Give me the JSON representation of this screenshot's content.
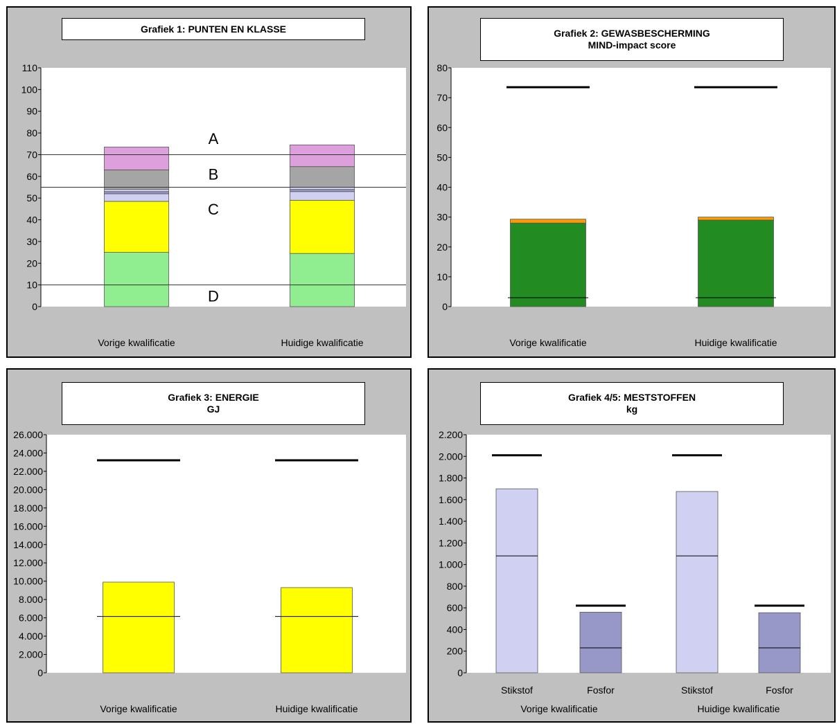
{
  "chart_data": [
    {
      "type": "bar",
      "stacked": true,
      "title": "Grafiek 1: PUNTEN EN KLASSE",
      "subtitle": "",
      "categories": [
        "Vorige kwalificatie",
        "Huidige kwalificatie"
      ],
      "ylim": [
        0,
        110
      ],
      "yticks": [
        0,
        10,
        20,
        30,
        40,
        50,
        60,
        70,
        80,
        90,
        100,
        110
      ],
      "tick_format": "plain",
      "series": [
        {
          "values": [
            25,
            24.5
          ],
          "color": "#90ee90"
        },
        {
          "values": [
            23.5,
            24.5
          ],
          "color": "#ffff00"
        },
        {
          "values": [
            3.5,
            4
          ],
          "color": "#d0d0f2"
        },
        {
          "values": [
            1,
            1
          ],
          "color": "#9898c8"
        },
        {
          "values": [
            1,
            1
          ],
          "color": "#d0d0f2"
        },
        {
          "values": [
            9,
            9.5
          ],
          "color": "#a5a5a5"
        },
        {
          "values": [
            10.5,
            10
          ],
          "color": "#dda0dd"
        }
      ],
      "reference_lines": [
        {
          "y": 70,
          "label": "A",
          "label_y": 77.5
        },
        {
          "y": 55,
          "label": "B",
          "label_y": 61
        },
        {
          "y": 10,
          "label": "D",
          "label_y": 5
        }
      ],
      "region_labels": [
        {
          "label": "C",
          "y": 45
        }
      ],
      "grid": false,
      "legend": "none"
    },
    {
      "type": "bar",
      "stacked": true,
      "title": "Grafiek 2: GEWASBESCHERMING",
      "subtitle": "MIND-impact score",
      "categories": [
        "Vorige kwalificatie",
        "Huidige kwalificatie"
      ],
      "ylim": [
        0,
        80
      ],
      "yticks": [
        0,
        10,
        20,
        30,
        40,
        50,
        60,
        70,
        80
      ],
      "tick_format": "plain",
      "series": [
        {
          "values": [
            28,
            29
          ],
          "color": "#228b22"
        },
        {
          "values": [
            1.3,
            1
          ],
          "color": "#ff9900"
        }
      ],
      "markers": [
        {
          "values": [
            73.5,
            73.5
          ],
          "style": "thick"
        },
        {
          "values": [
            3,
            3
          ],
          "style": "thin"
        }
      ],
      "grid": false,
      "legend": "none"
    },
    {
      "type": "bar",
      "stacked": false,
      "title": "Grafiek 3: ENERGIE",
      "subtitle": "GJ",
      "categories": [
        "Vorige kwalificatie",
        "Huidige kwalificatie"
      ],
      "ylim": [
        0,
        26000
      ],
      "yticks": [
        0,
        2000,
        4000,
        6000,
        8000,
        10000,
        12000,
        14000,
        16000,
        18000,
        20000,
        22000,
        24000,
        26000
      ],
      "tick_format": "nl",
      "series": [
        {
          "values": [
            9900,
            9300
          ],
          "color": "#ffff00"
        }
      ],
      "markers": [
        {
          "values": [
            23200,
            23200
          ],
          "style": "thick"
        },
        {
          "values": [
            6150,
            6150
          ],
          "style": "thin"
        }
      ],
      "grid": false,
      "legend": "none"
    },
    {
      "type": "bar",
      "stacked": false,
      "grouped": true,
      "title": "Grafiek 4/5: MESTSTOFFEN",
      "subtitle": "kg",
      "categories": [
        "Vorige kwalificatie",
        "Huidige kwalificatie"
      ],
      "subcategories": [
        "Stikstof",
        "Fosfor"
      ],
      "ylim": [
        0,
        2200
      ],
      "yticks": [
        0,
        200,
        400,
        600,
        800,
        1000,
        1200,
        1400,
        1600,
        1800,
        2000,
        2200
      ],
      "tick_format": "nl",
      "bars": [
        {
          "category": "Vorige kwalificatie",
          "sub": "Stikstof",
          "value": 1700,
          "color": "#d0d0f2",
          "max": 2010,
          "ref": 1080
        },
        {
          "category": "Vorige kwalificatie",
          "sub": "Fosfor",
          "value": 560,
          "color": "#9898c8",
          "max": 620,
          "ref": 230
        },
        {
          "category": "Huidige kwalificatie",
          "sub": "Stikstof",
          "value": 1675,
          "color": "#d0d0f2",
          "max": 2010,
          "ref": 1080
        },
        {
          "category": "Huidige kwalificatie",
          "sub": "Fosfor",
          "value": 555,
          "color": "#9898c8",
          "max": 620,
          "ref": 230
        }
      ],
      "grid": false,
      "legend": "none"
    }
  ]
}
